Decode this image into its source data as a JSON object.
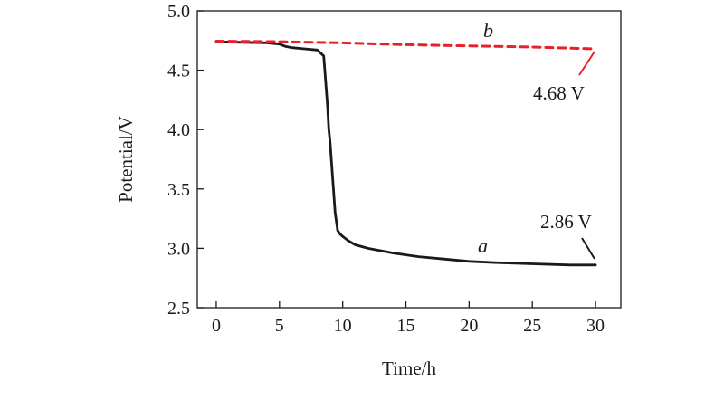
{
  "chart_data": {
    "type": "line",
    "title": "",
    "xlabel": "Time/h",
    "ylabel": "Potential/V",
    "xlim": [
      -1.5,
      32
    ],
    "ylim": [
      2.5,
      5.0
    ],
    "x_ticks": [
      0,
      5,
      10,
      15,
      20,
      25,
      30
    ],
    "y_ticks": [
      2.5,
      3.0,
      3.5,
      4.0,
      4.5,
      5.0
    ],
    "x_tick_labels": [
      "0",
      "5",
      "10",
      "15",
      "20",
      "25",
      "30"
    ],
    "y_tick_labels": [
      "2.5",
      "3.0",
      "3.5",
      "4.0",
      "4.5",
      "5.0"
    ],
    "grid": false,
    "series": [
      {
        "label": "a",
        "color": "#1a1a1a",
        "style": "solid",
        "x": [
          0,
          2,
          4,
          5,
          5.5,
          6,
          7,
          8,
          8.5,
          8.8,
          8.9,
          9.0,
          9.2,
          9.4,
          9.6,
          9.8,
          10,
          10.5,
          11,
          12,
          14,
          16,
          18,
          20,
          22,
          25,
          28,
          30
        ],
        "y": [
          4.74,
          4.735,
          4.73,
          4.72,
          4.7,
          4.69,
          4.68,
          4.67,
          4.62,
          4.2,
          4.0,
          3.9,
          3.6,
          3.3,
          3.15,
          3.12,
          3.1,
          3.06,
          3.03,
          3.0,
          2.96,
          2.93,
          2.91,
          2.89,
          2.88,
          2.87,
          2.86,
          2.86
        ]
      },
      {
        "label": "b",
        "color": "#e8202a",
        "style": "dashed",
        "x": [
          0,
          5,
          10,
          15,
          20,
          25,
          30
        ],
        "y": [
          4.745,
          4.74,
          4.73,
          4.715,
          4.705,
          4.695,
          4.68
        ]
      }
    ],
    "annotations": [
      {
        "text": "4.68 V",
        "for": "b"
      },
      {
        "text": "2.86 V",
        "for": "a"
      }
    ]
  }
}
